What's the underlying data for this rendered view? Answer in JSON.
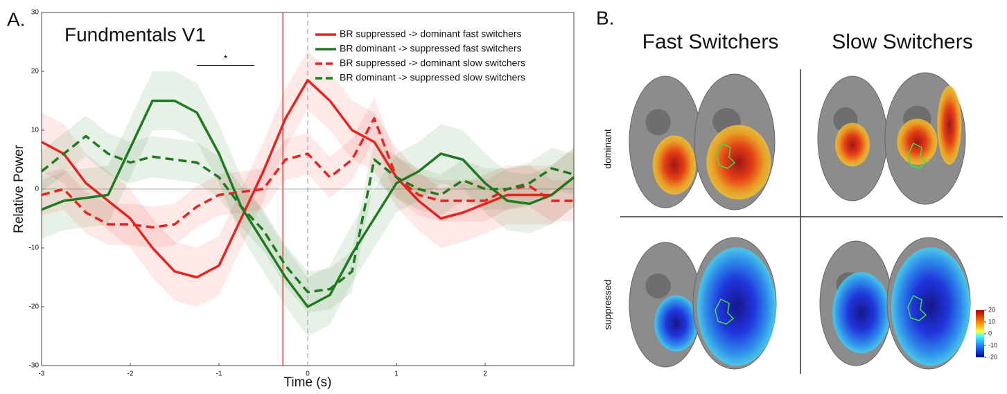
{
  "chart_data": {
    "type": "line",
    "panel_label": "A.",
    "title": "Fundmentals  V1",
    "x_label": "Time (s)",
    "y_label": "Relative Power",
    "x": [
      -3,
      -2.75,
      -2.5,
      -2.25,
      -2,
      -1.75,
      -1.5,
      -1.25,
      -1,
      -0.75,
      -0.5,
      -0.25,
      0,
      0.25,
      0.5,
      0.75,
      1,
      1.25,
      1.5,
      1.75,
      2,
      2.25,
      2.5,
      2.75,
      3
    ],
    "series": [
      {
        "name": "BR suppressed -> dominant fast switchers",
        "color": "#e8231f",
        "dashed": false,
        "error": 5,
        "values": [
          8,
          6,
          1,
          -2,
          -5,
          -10,
          -14,
          -15,
          -13,
          -5,
          3,
          12,
          18.5,
          15,
          10,
          8,
          2,
          -2,
          -5,
          -4,
          -2.5,
          -1,
          -1,
          -1,
          2
        ]
      },
      {
        "name": "BR dominant -> suppressed fast switchers",
        "color": "#1e7a1e",
        "dashed": false,
        "error": 5,
        "values": [
          -3.5,
          -2,
          -1.5,
          -1,
          7,
          15,
          15,
          13,
          6,
          -3,
          -9,
          -15,
          -20,
          -18,
          -11,
          -5,
          1,
          3,
          6,
          5,
          1,
          -2,
          -2.5,
          -1,
          2
        ]
      },
      {
        "name": "BR suppressed -> dominant slow switchers",
        "color": "#e8231f",
        "dashed": true,
        "error": 3.5,
        "values": [
          -1,
          0,
          -4,
          -6,
          -6,
          -6.5,
          -6,
          -3,
          -1,
          -0.5,
          0,
          5,
          6,
          2,
          5,
          12,
          2,
          -1,
          -2,
          -2,
          -2,
          0,
          0.5,
          -2,
          -2
        ]
      },
      {
        "name": "BR dominant -> suppressed slow switchers",
        "color": "#1e7a1e",
        "dashed": true,
        "error": 3.5,
        "values": [
          3,
          6,
          9,
          6,
          4.5,
          5.5,
          5,
          4.5,
          2,
          -3,
          -7,
          -13,
          -17.5,
          -17,
          -14,
          5,
          2,
          0,
          -1,
          1.5,
          0,
          0,
          1,
          3.5,
          2.5
        ]
      }
    ],
    "xlim": [
      -3,
      3
    ],
    "ylim": [
      -30,
      30
    ],
    "xticks": [
      -3,
      -2,
      -1,
      0,
      1,
      2
    ],
    "yticks": [
      -30,
      -20,
      -10,
      0,
      10,
      20,
      30
    ],
    "vlines": [
      {
        "x": -0.28,
        "color": "#e8231f",
        "dashed": false
      },
      {
        "x": 0,
        "color": "#aaaaaa",
        "dashed": true
      }
    ],
    "annotations": [
      {
        "text": "*",
        "x_start": -1.25,
        "x_end": -0.6,
        "y": 21
      }
    ]
  },
  "panel_b": {
    "panel_label": "B.",
    "columns": [
      "Fast Switchers",
      "Slow Switchers"
    ],
    "rows": [
      "dominant",
      "suppressed"
    ],
    "colorbar_ticks": [
      20,
      10,
      0,
      -10,
      -20
    ]
  }
}
